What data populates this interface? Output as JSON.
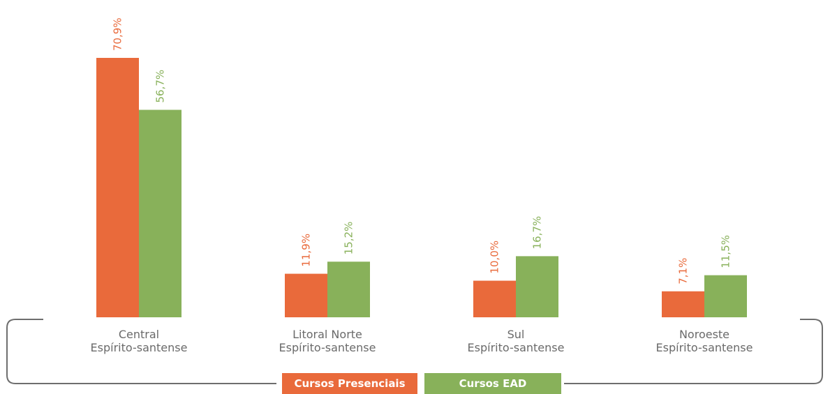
{
  "chart_data": {
    "type": "bar",
    "categories": [
      {
        "line1": "Central",
        "line2": "Espírito-santense"
      },
      {
        "line1": "Litoral Norte",
        "line2": "Espírito-santense"
      },
      {
        "line1": "Sul",
        "line2": "Espírito-santense"
      },
      {
        "line1": "Noroeste",
        "line2": "Espírito-santense"
      }
    ],
    "series": [
      {
        "name": "Cursos Presenciais",
        "color": "#e96a3b",
        "values": [
          70.9,
          11.9,
          10.0,
          7.1
        ],
        "labels": [
          "70,9%",
          "11,9%",
          "10,0%",
          "7,1%"
        ]
      },
      {
        "name": "Cursos EAD",
        "color": "#88b15a",
        "values": [
          56.7,
          15.2,
          16.7,
          11.5
        ],
        "labels": [
          "56,7%",
          "15,2%",
          "16,7%",
          "11,5%"
        ]
      }
    ],
    "ylim": [
      0,
      70.9
    ],
    "grid": false,
    "legend_position": "bottom-center",
    "bracket_color": "#6e6e6e"
  }
}
